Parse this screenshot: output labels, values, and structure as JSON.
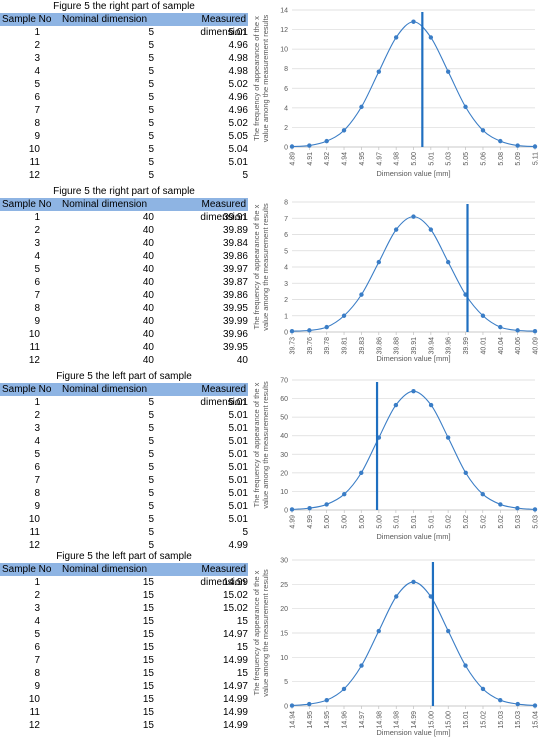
{
  "tables": [
    {
      "title": "Figure 5 the right part of sample",
      "columns": [
        "Sample No",
        "Nominal dimension",
        "Measured dimension"
      ],
      "rows": [
        [
          1,
          5,
          5.01
        ],
        [
          2,
          5,
          4.96
        ],
        [
          3,
          5,
          4.98
        ],
        [
          4,
          5,
          4.98
        ],
        [
          5,
          5,
          5.02
        ],
        [
          6,
          5,
          4.96
        ],
        [
          7,
          5,
          4.96
        ],
        [
          8,
          5,
          5.02
        ],
        [
          9,
          5,
          5.05
        ],
        [
          10,
          5,
          5.04
        ],
        [
          11,
          5,
          5.01
        ],
        [
          12,
          5,
          5
        ]
      ]
    },
    {
      "title": "Figure 5 the right part of sample",
      "columns": [
        "Sample No",
        "Nominal dimension",
        "Measured dimension"
      ],
      "rows": [
        [
          1,
          40,
          39.91
        ],
        [
          2,
          40,
          39.89
        ],
        [
          3,
          40,
          39.84
        ],
        [
          4,
          40,
          39.86
        ],
        [
          5,
          40,
          39.97
        ],
        [
          6,
          40,
          39.87
        ],
        [
          7,
          40,
          39.86
        ],
        [
          8,
          40,
          39.95
        ],
        [
          9,
          40,
          39.99
        ],
        [
          10,
          40,
          39.96
        ],
        [
          11,
          40,
          39.95
        ],
        [
          12,
          40,
          40
        ]
      ]
    },
    {
      "title": "Figure 5 the left part of sample",
      "columns": [
        "Sample No",
        "Nominal dimension",
        "Measured dimension"
      ],
      "rows": [
        [
          1,
          5,
          5.01
        ],
        [
          2,
          5,
          5.01
        ],
        [
          3,
          5,
          5.01
        ],
        [
          4,
          5,
          5.01
        ],
        [
          5,
          5,
          5.01
        ],
        [
          6,
          5,
          5.01
        ],
        [
          7,
          5,
          5.01
        ],
        [
          8,
          5,
          5.01
        ],
        [
          9,
          5,
          5.01
        ],
        [
          10,
          5,
          5.01
        ],
        [
          11,
          5,
          5
        ],
        [
          12,
          5,
          4.99
        ]
      ]
    },
    {
      "title": "Figure 5 the left part of sample",
      "columns": [
        "Sample No",
        "Nominal dimension",
        "Measured dimension"
      ],
      "rows": [
        [
          1,
          15,
          14.99
        ],
        [
          2,
          15,
          15.02
        ],
        [
          3,
          15,
          15.02
        ],
        [
          4,
          15,
          15
        ],
        [
          5,
          15,
          14.97
        ],
        [
          6,
          15,
          15
        ],
        [
          7,
          15,
          14.99
        ],
        [
          8,
          15,
          15
        ],
        [
          9,
          15,
          14.97
        ],
        [
          10,
          15,
          14.99
        ],
        [
          11,
          15,
          14.99
        ],
        [
          12,
          15,
          14.99
        ]
      ]
    }
  ],
  "chart_data": [
    {
      "type": "line",
      "color": "#3a7dc6",
      "mean_color": "#1f6fc0",
      "xlabel": "Dimension value [mm]",
      "ylabel": [
        "The frequency of appearance of the x",
        "value among the measurement results"
      ],
      "x": [
        4.89,
        4.9057,
        4.9214,
        4.9371,
        4.9529,
        4.9686,
        4.9843,
        5.0,
        5.0157,
        5.0314,
        5.0471,
        5.0629,
        5.0786,
        5.0943,
        5.11
      ],
      "values": [
        0.05,
        0.15,
        0.6,
        1.7,
        4.1,
        7.7,
        11.2,
        12.8,
        11.2,
        7.7,
        4.1,
        1.7,
        0.6,
        0.15,
        0.05
      ],
      "mean_line": 5.008,
      "xlim": [
        4.89,
        5.11
      ],
      "xticks": [
        {
          "value": 4.89,
          "label": "4.89"
        },
        {
          "value": 4.9057,
          "label": "4.91"
        },
        {
          "value": 4.9214,
          "label": "4.92"
        },
        {
          "value": 4.9371,
          "label": "4.94"
        },
        {
          "value": 4.9529,
          "label": "4.95"
        },
        {
          "value": 4.9686,
          "label": "4.97"
        },
        {
          "value": 4.9843,
          "label": "4.98"
        },
        {
          "value": 5.0,
          "label": "5.00"
        },
        {
          "value": 5.0157,
          "label": "5.01"
        },
        {
          "value": 5.0314,
          "label": "5.03"
        },
        {
          "value": 5.0471,
          "label": "5.05"
        },
        {
          "value": 5.0629,
          "label": "5.06"
        },
        {
          "value": 5.0786,
          "label": "5.08"
        },
        {
          "value": 5.0943,
          "label": "5.09"
        },
        {
          "value": 5.11,
          "label": "5.11"
        }
      ],
      "ylim": [
        0,
        14
      ],
      "yticks": [
        0,
        2,
        4,
        6,
        8,
        10,
        12,
        14
      ],
      "grid": true
    },
    {
      "type": "line",
      "color": "#3a7dc6",
      "mean_color": "#1f6fc0",
      "xlabel": "Dimension value [mm]",
      "ylabel": [
        "The frequency of appearance of the x",
        "value among the measurement results"
      ],
      "x": [
        39.73,
        39.7557,
        39.7814,
        39.8071,
        39.8329,
        39.8586,
        39.8843,
        39.91,
        39.9357,
        39.9614,
        39.9871,
        40.0129,
        40.0386,
        40.0643,
        40.09
      ],
      "values": [
        0.05,
        0.1,
        0.3,
        1.0,
        2.3,
        4.3,
        6.3,
        7.1,
        6.3,
        4.3,
        2.3,
        1.0,
        0.3,
        0.1,
        0.05
      ],
      "mean_line": 39.99,
      "xlim": [
        39.73,
        40.09
      ],
      "xticks": [
        {
          "value": 39.73,
          "label": "39.73"
        },
        {
          "value": 39.7557,
          "label": "39.76"
        },
        {
          "value": 39.7814,
          "label": "39.78"
        },
        {
          "value": 39.8071,
          "label": "39.81"
        },
        {
          "value": 39.8329,
          "label": "39.83"
        },
        {
          "value": 39.8586,
          "label": "39.86"
        },
        {
          "value": 39.8843,
          "label": "39.88"
        },
        {
          "value": 39.91,
          "label": "39.91"
        },
        {
          "value": 39.9357,
          "label": "39.94"
        },
        {
          "value": 39.9614,
          "label": "39.96"
        },
        {
          "value": 39.9871,
          "label": "39.99"
        },
        {
          "value": 40.0129,
          "label": "40.01"
        },
        {
          "value": 40.0386,
          "label": "40.04"
        },
        {
          "value": 40.0643,
          "label": "40.06"
        },
        {
          "value": 40.09,
          "label": "40.09"
        }
      ],
      "ylim": [
        0,
        8
      ],
      "yticks": [
        0,
        1,
        2,
        3,
        4,
        5,
        6,
        7,
        8
      ],
      "grid": true
    },
    {
      "type": "line",
      "color": "#3a7dc6",
      "mean_color": "#1f6fc0",
      "xlabel": "Dimension value [mm]",
      "ylabel": [
        "The frequency of appearance of the x",
        "value among the measurement results"
      ],
      "x": [
        4.99,
        4.9929,
        4.9957,
        4.9986,
        5.0014,
        5.0043,
        5.0071,
        5.01,
        5.0129,
        5.0157,
        5.0186,
        5.0214,
        5.0243,
        5.0271,
        5.03
      ],
      "values": [
        0.3,
        1,
        3,
        8.5,
        20,
        39,
        56.5,
        64,
        56.5,
        39,
        20,
        8.5,
        3,
        1,
        0.3
      ],
      "mean_line": 5.004,
      "xlim": [
        4.99,
        5.03
      ],
      "xticks": [
        {
          "value": 4.99,
          "label": "4.99"
        },
        {
          "value": 4.9929,
          "label": "4.99"
        },
        {
          "value": 4.9957,
          "label": "5.00"
        },
        {
          "value": 4.9986,
          "label": "5.00"
        },
        {
          "value": 5.0014,
          "label": "5.00"
        },
        {
          "value": 5.0043,
          "label": "5.00"
        },
        {
          "value": 5.0071,
          "label": "5.01"
        },
        {
          "value": 5.01,
          "label": "5.01"
        },
        {
          "value": 5.0129,
          "label": "5.01"
        },
        {
          "value": 5.0157,
          "label": "5.02"
        },
        {
          "value": 5.0186,
          "label": "5.02"
        },
        {
          "value": 5.0214,
          "label": "5.02"
        },
        {
          "value": 5.0243,
          "label": "5.02"
        },
        {
          "value": 5.0271,
          "label": "5.03"
        },
        {
          "value": 5.03,
          "label": "5.03"
        }
      ],
      "ylim": [
        0,
        70
      ],
      "yticks": [
        0,
        10,
        20,
        30,
        40,
        50,
        60,
        70
      ],
      "grid": true
    },
    {
      "type": "line",
      "color": "#3a7dc6",
      "mean_color": "#1f6fc0",
      "xlabel": "Dimension value [mm]",
      "ylabel": [
        "The frequency of appearance of the x",
        "value among the measurement results"
      ],
      "x": [
        14.94,
        14.9471,
        14.9543,
        14.9614,
        14.9686,
        14.9757,
        14.9829,
        14.99,
        14.9971,
        15.0043,
        15.0114,
        15.0186,
        15.0257,
        15.0329,
        15.04
      ],
      "values": [
        0.1,
        0.4,
        1.2,
        3.5,
        8.3,
        15.4,
        22.5,
        25.5,
        22.5,
        15.4,
        8.3,
        3.5,
        1.2,
        0.4,
        0.1
      ],
      "mean_line": 14.998,
      "xlim": [
        14.94,
        15.04
      ],
      "xticks": [
        {
          "value": 14.94,
          "label": "14.94"
        },
        {
          "value": 14.9471,
          "label": "14.95"
        },
        {
          "value": 14.9543,
          "label": "14.95"
        },
        {
          "value": 14.9614,
          "label": "14.96"
        },
        {
          "value": 14.9686,
          "label": "14.97"
        },
        {
          "value": 14.9757,
          "label": "14.98"
        },
        {
          "value": 14.9829,
          "label": "14.98"
        },
        {
          "value": 14.99,
          "label": "14.99"
        },
        {
          "value": 14.9971,
          "label": "15.00"
        },
        {
          "value": 15.0043,
          "label": "15.00"
        },
        {
          "value": 15.0114,
          "label": "15.01"
        },
        {
          "value": 15.0186,
          "label": "15.02"
        },
        {
          "value": 15.0257,
          "label": "15.03"
        },
        {
          "value": 15.0329,
          "label": "15.03"
        },
        {
          "value": 15.04,
          "label": "15.04"
        }
      ],
      "ylim": [
        0,
        30
      ],
      "yticks": [
        0,
        5,
        10,
        15,
        20,
        25,
        30
      ],
      "grid": true
    }
  ]
}
